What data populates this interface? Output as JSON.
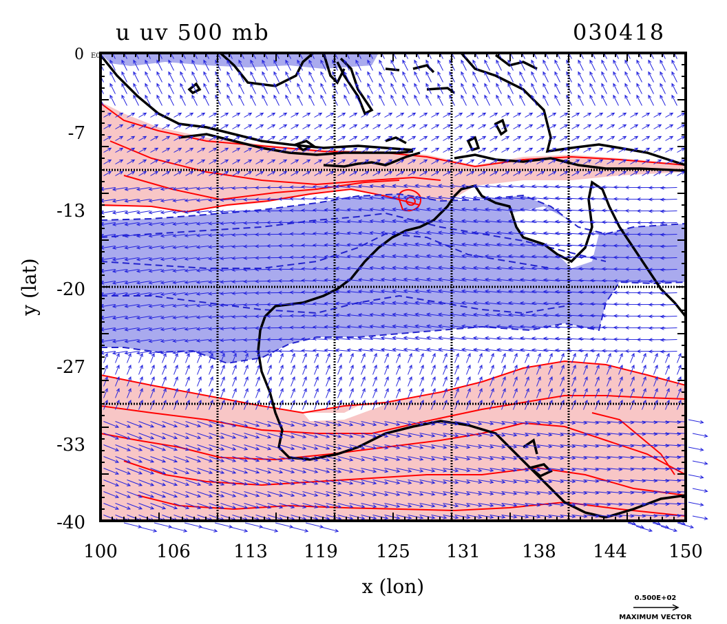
{
  "title_left": "u uv 500 mb",
  "title_right": "030418",
  "corner_label": "0 E0",
  "xlabel": "x (lon)",
  "ylabel": "y (lat)",
  "x_ticks": [
    "100",
    "106",
    "113",
    "119",
    "125",
    "131",
    "138",
    "144",
    "150"
  ],
  "y_ticks": [
    "0",
    "-7",
    "-13",
    "-20",
    "-27",
    "-33",
    "-40"
  ],
  "vector_key": {
    "value": "0.500E+02",
    "label": "MAXIMUM VECTOR"
  },
  "colors": {
    "positive_fill": "#f8c6c6",
    "positive_contour": "#ff0000",
    "negative_fill": "#a9aaee",
    "negative_contour": "#2222cc",
    "vectors": "#2222dd",
    "coast": "#000000"
  },
  "chart_data": {
    "type": "map",
    "x_range": [
      100,
      150
    ],
    "y_range": [
      -40,
      0
    ],
    "grid": true,
    "fields": [
      {
        "name": "u",
        "shading": "red = positive u, blue = negative u"
      },
      {
        "name": "uv",
        "shading": "wind vectors"
      }
    ],
    "bands": [
      {
        "sign": "positive",
        "lat_range": [
          -13,
          -8
        ]
      },
      {
        "sign": "negative",
        "lat_range": [
          -26,
          -14
        ]
      },
      {
        "sign": "positive",
        "lat_range": [
          -40,
          -29
        ]
      }
    ]
  }
}
